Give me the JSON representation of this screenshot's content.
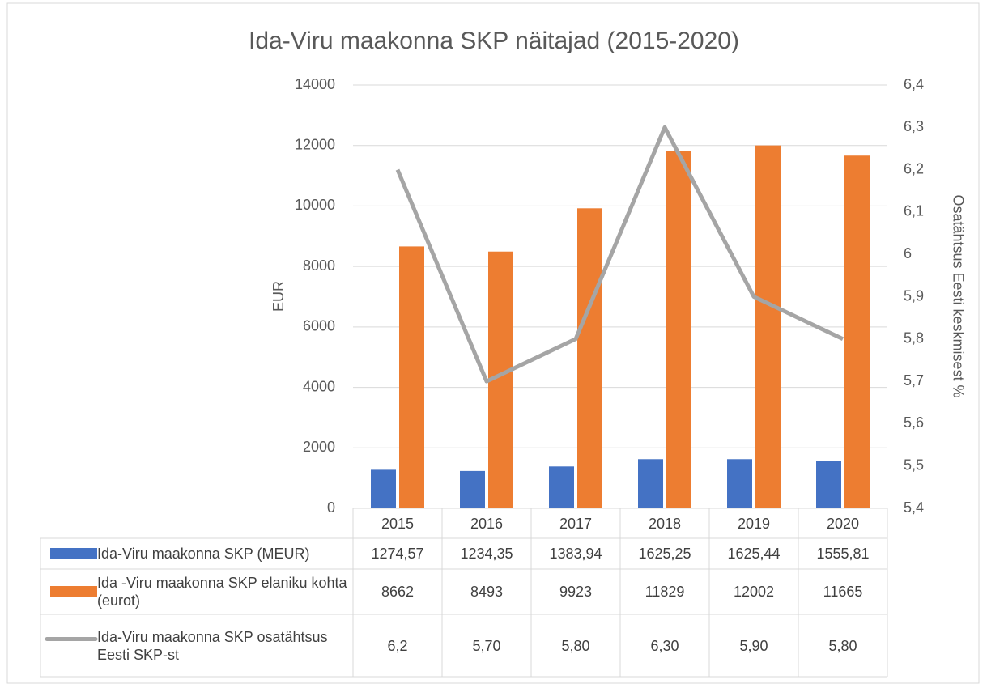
{
  "chart_data": {
    "type": "bar",
    "title": "Ida-Viru maakonna SKP näitajad (2015-2020)",
    "ylabel": "EUR",
    "y2label": "Osatähtsus Eesti keskmisest %",
    "categories": [
      "2015",
      "2016",
      "2017",
      "2018",
      "2019",
      "2020"
    ],
    "series": [
      {
        "name": "Ida-Viru maakonna SKP (MEUR)",
        "type": "bar",
        "color": "#4472c4",
        "values": [
          1274.57,
          1234.35,
          1383.94,
          1625.25,
          1625.44,
          1555.81
        ],
        "value_labels": [
          "1274,57",
          "1234,35",
          "1383,94",
          "1625,25",
          "1625,44",
          "1555,81"
        ]
      },
      {
        "name": "Ida -Viru maakonna SKP elaniku kohta (eurot)",
        "type": "bar",
        "color": "#ed7d31",
        "values": [
          8662,
          8493,
          9923,
          11829,
          12002,
          11665
        ]
      },
      {
        "name": "Ida-Viru maakonna SKP osatähtsus Eesti SKP-st",
        "type": "line",
        "axis": "y2",
        "color": "#a5a5a5",
        "values": [
          6.2,
          5.7,
          5.8,
          6.3,
          5.9,
          5.8
        ],
        "value_labels": [
          "6,2",
          "5,70",
          "5,80",
          "6,30",
          "5,90",
          "5,80"
        ]
      }
    ],
    "ylim": [
      0,
      14000
    ],
    "yticks": [
      0,
      2000,
      4000,
      6000,
      8000,
      10000,
      12000,
      14000
    ],
    "y2lim": [
      5.4,
      6.4
    ],
    "y2ticks": [
      {
        "value": 5.4,
        "label": "5,4"
      },
      {
        "value": 5.5,
        "label": "5,5"
      },
      {
        "value": 5.6,
        "label": "5,6"
      },
      {
        "value": 5.7,
        "label": "5,7"
      },
      {
        "value": 5.8,
        "label": "5,8"
      },
      {
        "value": 5.9,
        "label": "5,9"
      },
      6,
      {
        "value": 6.1,
        "label": "6,1"
      },
      {
        "value": 6.2,
        "label": "6,2"
      },
      {
        "value": 6.3,
        "label": "6,3"
      },
      {
        "value": 6.4,
        "label": "6,4"
      }
    ],
    "grid": true
  }
}
